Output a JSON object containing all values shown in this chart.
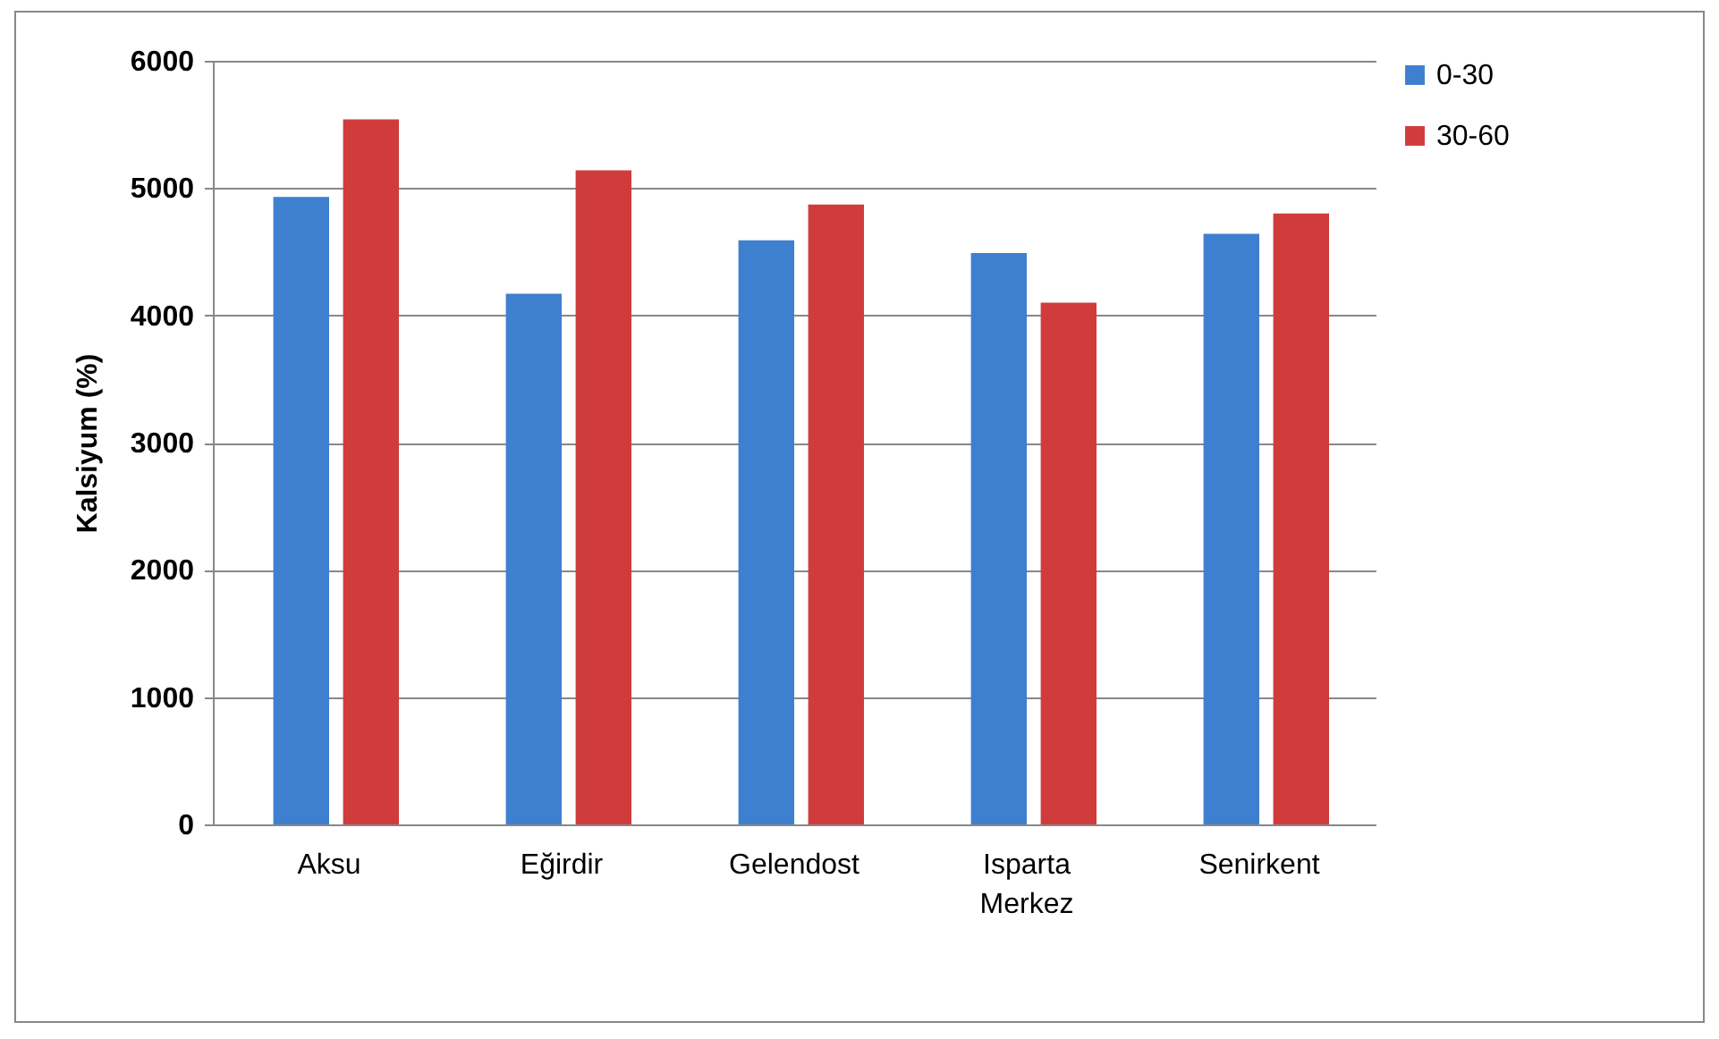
{
  "chart_data": {
    "type": "bar",
    "ylabel": "Kalsiyum (%)",
    "categories": [
      "Aksu",
      "Eğirdir",
      "Gelendost",
      "Isparta Merkez",
      "Senirkent"
    ],
    "series": [
      {
        "name": "0-30",
        "color": "#3f7fcf",
        "values": [
          4930,
          4170,
          4590,
          4490,
          4640
        ]
      },
      {
        "name": "30-60",
        "color": "#d03c3c",
        "values": [
          5540,
          5140,
          4870,
          4100,
          4800
        ]
      }
    ],
    "ylim": [
      0,
      6000
    ],
    "yticks": [
      0,
      1000,
      2000,
      3000,
      4000,
      5000,
      6000
    ],
    "grid": "y",
    "legend": "right"
  }
}
